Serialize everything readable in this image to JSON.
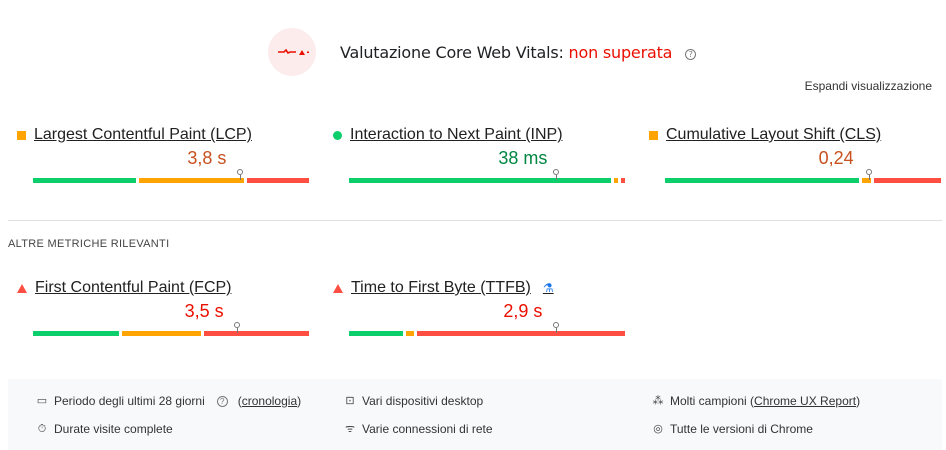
{
  "header": {
    "title": "Valutazione Core Web Vitals:",
    "status": "non superata",
    "expand": "Espandi visualizzazione",
    "icon": "heartbeat-fail-icon"
  },
  "colors": {
    "good": "#0cce6b",
    "needs_improvement": "#ffa400",
    "poor": "#ff4e42",
    "fail": "#eb0f00"
  },
  "core": [
    {
      "name": "Largest Contentful Paint (LCP)",
      "value": "3,8 s",
      "rating": "needs-improvement",
      "valueColor": "#c7511f",
      "dist": [
        38,
        39,
        23
      ],
      "p75": 75
    },
    {
      "name": "Interaction to Next Paint (INP)",
      "value": "38 ms",
      "rating": "good",
      "valueColor": "#018642",
      "dist": [
        97,
        1.5,
        1.5
      ],
      "p75": 75
    },
    {
      "name": "Cumulative Layout Shift (CLS)",
      "value": "0,24",
      "rating": "needs-improvement",
      "valueColor": "#c7511f",
      "dist": [
        72,
        3,
        25
      ],
      "p75": 74
    }
  ],
  "section_label": "ALTRE METRICHE RILEVANTI",
  "other": [
    {
      "name": "First Contentful Paint (FCP)",
      "value": "3,5 s",
      "rating": "poor",
      "valueColor": "#eb0f00",
      "dist": [
        32,
        29,
        39
      ],
      "p75": 74
    },
    {
      "name": "Time to First Byte (TTFB)",
      "value": "2,9 s",
      "rating": "poor",
      "valueColor": "#eb0f00",
      "dist": [
        20,
        3,
        77
      ],
      "p75": 75,
      "experimental": true
    }
  ],
  "footer": {
    "period": "Periodo degli ultimi 28 giorni",
    "history_link": "cronologia",
    "devices": "Vari dispositivi desktop",
    "samples_prefix": "Molti campioni (",
    "samples_link": "Chrome UX Report",
    "samples_suffix": ")",
    "visits": "Durate visite complete",
    "network": "Varie connessioni di rete",
    "chrome": "Tutte le versioni di Chrome"
  }
}
